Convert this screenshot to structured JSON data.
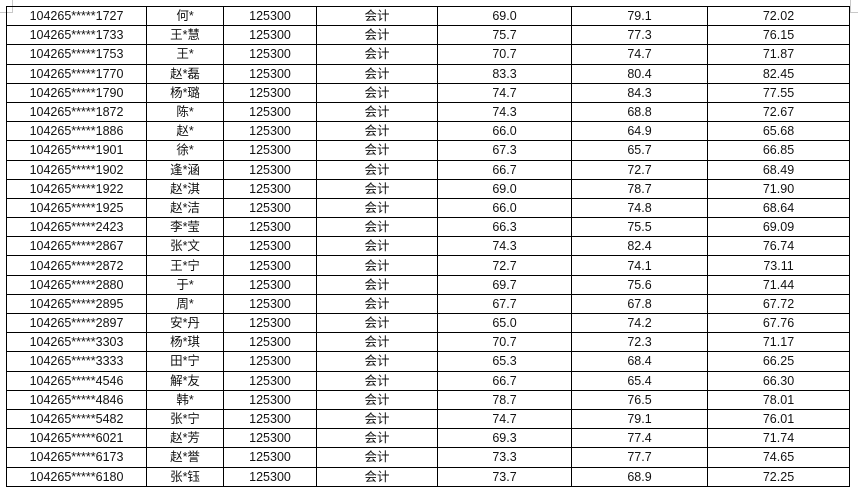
{
  "table": {
    "rows": [
      [
        "104265*****1727",
        "何*",
        "125300",
        "会计",
        "69.0",
        "79.1",
        "72.02"
      ],
      [
        "104265*****1733",
        "王*慧",
        "125300",
        "会计",
        "75.7",
        "77.3",
        "76.15"
      ],
      [
        "104265*****1753",
        "王*",
        "125300",
        "会计",
        "70.7",
        "74.7",
        "71.87"
      ],
      [
        "104265*****1770",
        "赵*磊",
        "125300",
        "会计",
        "83.3",
        "80.4",
        "82.45"
      ],
      [
        "104265*****1790",
        "杨*璐",
        "125300",
        "会计",
        "74.7",
        "84.3",
        "77.55"
      ],
      [
        "104265*****1872",
        "陈*",
        "125300",
        "会计",
        "74.3",
        "68.8",
        "72.67"
      ],
      [
        "104265*****1886",
        "赵*",
        "125300",
        "会计",
        "66.0",
        "64.9",
        "65.68"
      ],
      [
        "104265*****1901",
        "徐*",
        "125300",
        "会计",
        "67.3",
        "65.7",
        "66.85"
      ],
      [
        "104265*****1902",
        "逢*涵",
        "125300",
        "会计",
        "66.7",
        "72.7",
        "68.49"
      ],
      [
        "104265*****1922",
        "赵*淇",
        "125300",
        "会计",
        "69.0",
        "78.7",
        "71.90"
      ],
      [
        "104265*****1925",
        "赵*洁",
        "125300",
        "会计",
        "66.0",
        "74.8",
        "68.64"
      ],
      [
        "104265*****2423",
        "李*莹",
        "125300",
        "会计",
        "66.3",
        "75.5",
        "69.09"
      ],
      [
        "104265*****2867",
        "张*文",
        "125300",
        "会计",
        "74.3",
        "82.4",
        "76.74"
      ],
      [
        "104265*****2872",
        "王*宁",
        "125300",
        "会计",
        "72.7",
        "74.1",
        "73.11"
      ],
      [
        "104265*****2880",
        "于*",
        "125300",
        "会计",
        "69.7",
        "75.6",
        "71.44"
      ],
      [
        "104265*****2895",
        "周*",
        "125300",
        "会计",
        "67.7",
        "67.8",
        "67.72"
      ],
      [
        "104265*****2897",
        "安*丹",
        "125300",
        "会计",
        "65.0",
        "74.2",
        "67.76"
      ],
      [
        "104265*****3303",
        "杨*琪",
        "125300",
        "会计",
        "70.7",
        "72.3",
        "71.17"
      ],
      [
        "104265*****3333",
        "田*宁",
        "125300",
        "会计",
        "65.3",
        "68.4",
        "66.25"
      ],
      [
        "104265*****4546",
        "解*友",
        "125300",
        "会计",
        "66.7",
        "65.4",
        "66.30"
      ],
      [
        "104265*****4846",
        "韩*",
        "125300",
        "会计",
        "78.7",
        "76.5",
        "78.01"
      ],
      [
        "104265*****5482",
        "张*宁",
        "125300",
        "会计",
        "74.7",
        "79.1",
        "76.01"
      ],
      [
        "104265*****6021",
        "赵*芳",
        "125300",
        "会计",
        "69.3",
        "77.4",
        "71.74"
      ],
      [
        "104265*****6173",
        "赵*誉",
        "125300",
        "会计",
        "73.3",
        "77.7",
        "74.65"
      ],
      [
        "104265*****6180",
        "张*钰",
        "125300",
        "会计",
        "73.7",
        "68.9",
        "72.25"
      ]
    ]
  }
}
